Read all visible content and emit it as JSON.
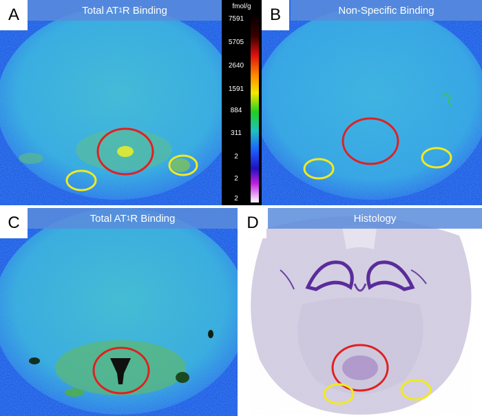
{
  "panels": {
    "a": {
      "letter": "A",
      "title_pre": "Total AT",
      "title_sub": "1",
      "title_post": "R Binding"
    },
    "b": {
      "letter": "B",
      "title": "Non-Specific Binding"
    },
    "c": {
      "letter": "C",
      "title_pre": "Total AT",
      "title_sub": "1",
      "title_post": "R Binding"
    },
    "d": {
      "letter": "D",
      "title": "Histology"
    }
  },
  "colorbar": {
    "unit": "fmol/g",
    "ticks": [
      "7591",
      "5705",
      "2640",
      "1591",
      "884",
      "311",
      "2",
      "2",
      "2"
    ]
  },
  "colors": {
    "background_blue": "#1f63e8",
    "tissue_cyan": "#34b6d8",
    "region_of_interest": "#e02020",
    "secondary_region": "#f2ea1f",
    "histology_purple": "#6a3fa0"
  }
}
